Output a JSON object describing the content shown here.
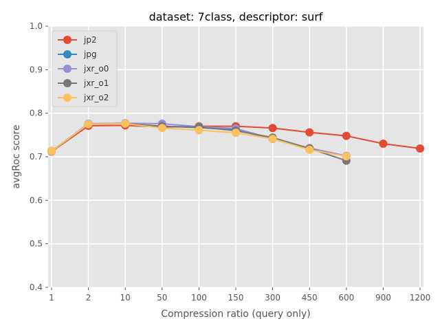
{
  "chart_data": {
    "type": "line",
    "title": "dataset: 7class, descriptor: surf",
    "xlabel": "Compression ratio (query only)",
    "ylabel": "avgRoc score",
    "ylim": [
      0.4,
      1.0
    ],
    "yticks": [
      "0.4",
      "0.5",
      "0.6",
      "0.7",
      "0.8",
      "0.9",
      "1.0"
    ],
    "categories": [
      "1",
      "2",
      "10",
      "50",
      "100",
      "150",
      "300",
      "450",
      "600",
      "900",
      "1200"
    ],
    "grid": true,
    "legend_position": "top-left",
    "series": [
      {
        "name": "jp2",
        "color": "#E24A33",
        "values": [
          0.712,
          0.771,
          0.772,
          0.768,
          0.77,
          0.77,
          0.766,
          0.756,
          0.748,
          0.73,
          0.719
        ]
      },
      {
        "name": "jpg",
        "color": "#348ABD",
        "values": [
          0.713,
          0.775,
          0.776,
          0.77,
          0.767,
          0.762,
          0.741,
          0.717,
          0.701,
          null,
          null
        ]
      },
      {
        "name": "jxr_o0",
        "color": "#988ED5",
        "values": [
          0.713,
          0.776,
          0.777,
          0.776,
          0.769,
          0.765,
          0.741,
          0.72,
          0.702,
          null,
          null
        ]
      },
      {
        "name": "jxr_o1",
        "color": "#777777",
        "values": [
          0.713,
          0.775,
          0.776,
          0.77,
          0.768,
          0.76,
          0.744,
          0.719,
          0.691,
          null,
          null
        ]
      },
      {
        "name": "jxr_o2",
        "color": "#FBC15E",
        "values": [
          0.713,
          0.775,
          0.776,
          0.766,
          0.761,
          0.755,
          0.741,
          0.716,
          0.701,
          null,
          null
        ]
      }
    ]
  }
}
